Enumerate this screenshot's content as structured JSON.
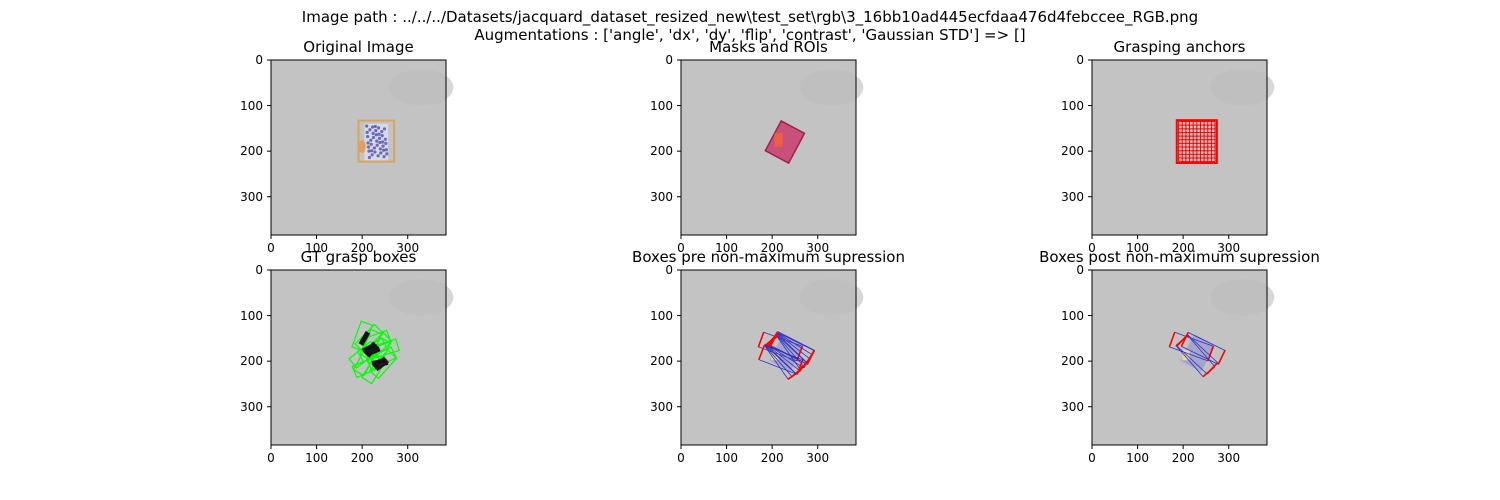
{
  "figure": {
    "suptitle_line1": "Image path : ../../../Datasets/jacquard_dataset_resized_new\\test_set\\rgb\\3_16bb10ad445ecfdaa476d4febccee_RGB.png",
    "suptitle_line2": "Augmentations : ['angle', 'dx', 'dy', 'flip', 'contrast', 'Gaussian STD'] => []"
  },
  "panels": [
    {
      "title": "Original Image",
      "variant": "original"
    },
    {
      "title": "Masks and ROIs",
      "variant": "masks"
    },
    {
      "title": "Grasping anchors",
      "variant": "anchors"
    },
    {
      "title": "GT grasp boxes",
      "variant": "gt"
    },
    {
      "title": "Boxes pre non-maximum supression",
      "variant": "pre"
    },
    {
      "title": "Boxes post non-maximum supression",
      "variant": "post"
    }
  ],
  "axes": {
    "xticks": [
      "0",
      "100",
      "200",
      "300"
    ],
    "yticks": [
      "0",
      "100",
      "200",
      "300"
    ],
    "xlim": [
      0,
      384
    ],
    "ylim": [
      384,
      0
    ]
  },
  "colors": {
    "background_gray": "#c3c3c3",
    "roi_box": "#d8a65a",
    "object_blue": "#6a6ab8",
    "mask_pink": "#c8507a",
    "anchor_red": "#ff0000",
    "gt_green": "#00ff00",
    "box_blue": "#3030c0"
  }
}
